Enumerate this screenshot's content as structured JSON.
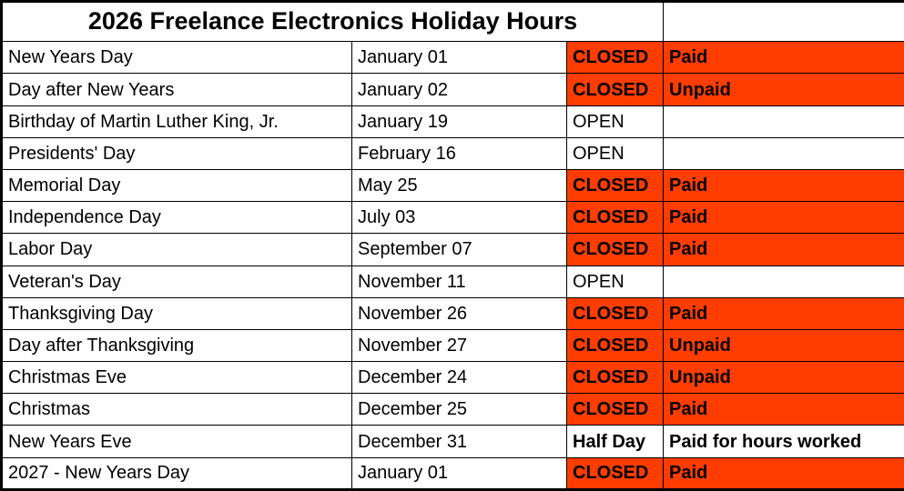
{
  "title": "2026 Freelance Electronics Holiday Hours",
  "colors": {
    "closed_highlight": "#FF3D00",
    "text": "#000000",
    "background": "#FFFFFF",
    "border": "#000000"
  },
  "table": {
    "columns": [
      "holiday",
      "date",
      "status",
      "pay"
    ],
    "rows": [
      {
        "holiday": "New Years Day",
        "date": "January 01",
        "status": "CLOSED",
        "pay": "Paid",
        "highlight": true
      },
      {
        "holiday": "Day after New Years",
        "date": "January 02",
        "status": "CLOSED",
        "pay": "Unpaid",
        "highlight": true
      },
      {
        "holiday": "Birthday of Martin Luther King, Jr.",
        "date": "January 19",
        "status": "OPEN",
        "pay": "",
        "highlight": false
      },
      {
        "holiday": "Presidents' Day",
        "date": "February 16",
        "status": "OPEN",
        "pay": "",
        "highlight": false
      },
      {
        "holiday": "Memorial Day",
        "date": "May 25",
        "status": "CLOSED",
        "pay": "Paid",
        "highlight": true
      },
      {
        "holiday": "Independence Day",
        "date": "July 03",
        "status": "CLOSED",
        "pay": "Paid",
        "highlight": true
      },
      {
        "holiday": "Labor Day",
        "date": "September 07",
        "status": "CLOSED",
        "pay": "Paid",
        "highlight": true
      },
      {
        "holiday": "Veteran's Day",
        "date": "November 11",
        "status": "OPEN",
        "pay": "",
        "highlight": false
      },
      {
        "holiday": "Thanksgiving Day",
        "date": "November 26",
        "status": "CLOSED",
        "pay": "Paid",
        "highlight": true
      },
      {
        "holiday": "Day after Thanksgiving",
        "date": "November 27",
        "status": "CLOSED",
        "pay": "Unpaid",
        "highlight": true
      },
      {
        "holiday": "Christmas Eve",
        "date": "December 24",
        "status": "CLOSED",
        "pay": "Unpaid",
        "highlight": true
      },
      {
        "holiday": "Christmas",
        "date": "December 25",
        "status": "CLOSED",
        "pay": "Paid",
        "highlight": true
      },
      {
        "holiday": "New Years Eve",
        "date": "December 31",
        "status": "Half Day",
        "pay": "Paid for hours worked",
        "highlight": false
      },
      {
        "holiday": "2027 - New Years Day",
        "date": "January 01",
        "status": "CLOSED",
        "pay": "Paid",
        "highlight": true
      }
    ]
  }
}
